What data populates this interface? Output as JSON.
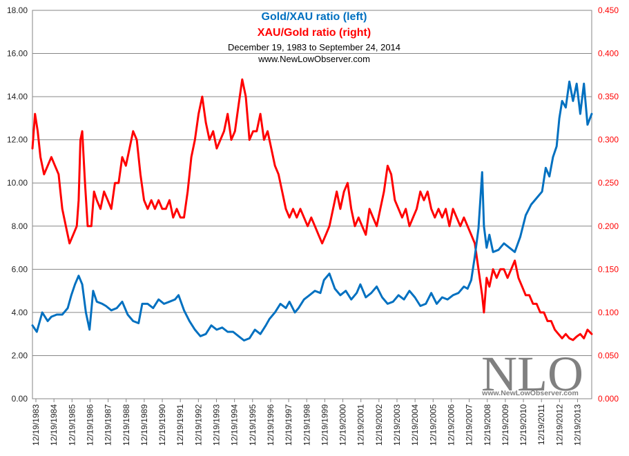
{
  "chart_data": {
    "type": "line",
    "title": "Gold/XAU ratio (left)",
    "subtitle": "XAU/Gold ratio (right)",
    "date_range": "December 19, 1983  to September 24, 2014",
    "website": "www.NewLowObserver.com",
    "watermark": {
      "text": "NLO",
      "url": "www.NewLowObserver.com"
    },
    "x_ticks": [
      "12/19/1983",
      "12/19/1984",
      "12/19/1985",
      "12/19/1986",
      "12/19/1987",
      "12/19/1988",
      "12/19/1989",
      "12/19/1990",
      "12/19/1991",
      "12/19/1992",
      "12/19/1993",
      "12/19/1994",
      "12/19/1995",
      "12/19/1996",
      "12/19/1997",
      "12/19/1998",
      "12/19/1999",
      "12/19/2000",
      "12/19/2001",
      "12/19/2002",
      "12/19/2003",
      "12/19/2004",
      "12/19/2005",
      "12/19/2006",
      "12/19/2007",
      "12/19/2008",
      "12/19/2009",
      "12/19/2010",
      "12/19/2011",
      "12/19/2012",
      "12/19/2013"
    ],
    "y_left": {
      "ticks": [
        "0.00",
        "2.00",
        "4.00",
        "6.00",
        "8.00",
        "10.00",
        "12.00",
        "14.00",
        "16.00",
        "18.00"
      ],
      "range": [
        0,
        18
      ]
    },
    "y_right": {
      "ticks": [
        "0.000",
        "0.050",
        "0.100",
        "0.150",
        "0.200",
        "0.250",
        "0.300",
        "0.350",
        "0.400",
        "0.450"
      ],
      "range": [
        0,
        0.45
      ]
    },
    "grid": true,
    "series": [
      {
        "axis": "left",
        "color": "#0070c0",
        "x": [
          1983.96,
          1984.2,
          1984.5,
          1984.8,
          1985.0,
          1985.3,
          1985.6,
          1985.9,
          1986.1,
          1986.3,
          1986.5,
          1986.7,
          1986.9,
          1987.1,
          1987.3,
          1987.5,
          1987.8,
          1988.0,
          1988.3,
          1988.6,
          1988.9,
          1989.2,
          1989.5,
          1989.8,
          1990.0,
          1990.3,
          1990.6,
          1990.9,
          1991.2,
          1991.5,
          1991.8,
          1992.0,
          1992.3,
          1992.6,
          1992.9,
          1993.2,
          1993.5,
          1993.8,
          1994.1,
          1994.4,
          1994.7,
          1995.0,
          1995.3,
          1995.6,
          1995.9,
          1996.2,
          1996.5,
          1996.8,
          1997.0,
          1997.3,
          1997.6,
          1997.9,
          1998.1,
          1998.4,
          1998.6,
          1998.9,
          1999.2,
          1999.5,
          1999.8,
          2000.0,
          2000.3,
          2000.6,
          2000.9,
          2001.2,
          2001.5,
          2001.8,
          2002.0,
          2002.3,
          2002.6,
          2002.9,
          2003.2,
          2003.5,
          2003.8,
          2004.1,
          2004.4,
          2004.7,
          2005.0,
          2005.3,
          2005.6,
          2005.9,
          2006.2,
          2006.5,
          2006.8,
          2007.1,
          2007.4,
          2007.7,
          2007.9,
          2008.1,
          2008.3,
          2008.5,
          2008.7,
          2008.8,
          2008.95,
          2009.1,
          2009.3,
          2009.6,
          2009.9,
          2010.2,
          2010.5,
          2010.8,
          2011.1,
          2011.4,
          2011.7,
          2012.0,
          2012.2,
          2012.4,
          2012.6,
          2012.8,
          2012.95,
          2013.1,
          2013.3,
          2013.5,
          2013.7,
          2013.9,
          2014.1,
          2014.3,
          2014.5,
          2014.73
        ],
        "values": [
          3.4,
          3.1,
          4.0,
          3.6,
          3.8,
          3.9,
          3.9,
          4.2,
          4.8,
          5.3,
          5.7,
          5.3,
          4.0,
          3.2,
          5.0,
          4.5,
          4.4,
          4.3,
          4.1,
          4.2,
          4.5,
          3.9,
          3.6,
          3.5,
          4.4,
          4.4,
          4.2,
          4.6,
          4.4,
          4.5,
          4.6,
          4.8,
          4.1,
          3.6,
          3.2,
          2.9,
          3.0,
          3.4,
          3.2,
          3.3,
          3.1,
          3.1,
          2.9,
          2.7,
          2.8,
          3.2,
          3.0,
          3.4,
          3.7,
          4.0,
          4.4,
          4.2,
          4.5,
          4.0,
          4.2,
          4.6,
          4.8,
          5.0,
          4.9,
          5.5,
          5.8,
          5.1,
          4.8,
          5.0,
          4.6,
          4.9,
          5.3,
          4.7,
          4.9,
          5.2,
          4.7,
          4.4,
          4.5,
          4.8,
          4.6,
          5.0,
          4.7,
          4.3,
          4.4,
          4.9,
          4.4,
          4.7,
          4.6,
          4.8,
          4.9,
          5.2,
          5.1,
          5.5,
          6.6,
          7.9,
          10.5,
          8.0,
          7.0,
          7.6,
          6.8,
          6.9,
          7.2,
          7.0,
          6.8,
          7.5,
          8.5,
          9.0,
          9.3,
          9.6,
          10.7,
          10.3,
          11.2,
          11.7,
          13.0,
          13.8,
          13.5,
          14.7,
          13.8,
          14.6,
          13.2,
          14.6,
          12.7,
          13.2
        ]
      },
      {
        "axis": "right",
        "color": "#ff0000",
        "x": [
          1983.96,
          1984.1,
          1984.25,
          1984.4,
          1984.6,
          1984.8,
          1985.0,
          1985.2,
          1985.4,
          1985.5,
          1985.6,
          1985.8,
          1986.0,
          1986.2,
          1986.4,
          1986.5,
          1986.6,
          1986.7,
          1986.85,
          1987.0,
          1987.2,
          1987.35,
          1987.5,
          1987.7,
          1987.9,
          1988.1,
          1988.3,
          1988.5,
          1988.7,
          1988.9,
          1989.1,
          1989.3,
          1989.5,
          1989.7,
          1989.9,
          1990.1,
          1990.3,
          1990.5,
          1990.7,
          1990.9,
          1991.1,
          1991.3,
          1991.5,
          1991.7,
          1991.9,
          1992.1,
          1992.3,
          1992.5,
          1992.7,
          1992.9,
          1993.1,
          1993.3,
          1993.5,
          1993.7,
          1993.9,
          1994.1,
          1994.3,
          1994.5,
          1994.7,
          1994.9,
          1995.1,
          1995.3,
          1995.5,
          1995.7,
          1995.9,
          1996.1,
          1996.3,
          1996.5,
          1996.7,
          1996.9,
          1997.1,
          1997.3,
          1997.5,
          1997.7,
          1997.9,
          1998.1,
          1998.3,
          1998.5,
          1998.7,
          1998.9,
          1999.1,
          1999.3,
          1999.5,
          1999.7,
          1999.9,
          2000.1,
          2000.3,
          2000.5,
          2000.7,
          2000.9,
          2001.1,
          2001.3,
          2001.5,
          2001.7,
          2001.9,
          2002.1,
          2002.3,
          2002.5,
          2002.7,
          2002.9,
          2003.1,
          2003.3,
          2003.5,
          2003.7,
          2003.9,
          2004.1,
          2004.3,
          2004.5,
          2004.7,
          2004.9,
          2005.1,
          2005.3,
          2005.5,
          2005.7,
          2005.9,
          2006.1,
          2006.3,
          2006.5,
          2006.7,
          2006.9,
          2007.1,
          2007.3,
          2007.5,
          2007.7,
          2007.9,
          2008.1,
          2008.3,
          2008.5,
          2008.7,
          2008.8,
          2008.95,
          2009.1,
          2009.3,
          2009.5,
          2009.7,
          2009.9,
          2010.1,
          2010.3,
          2010.5,
          2010.7,
          2010.9,
          2011.1,
          2011.3,
          2011.5,
          2011.7,
          2011.9,
          2012.1,
          2012.3,
          2012.5,
          2012.7,
          2012.9,
          2013.1,
          2013.3,
          2013.5,
          2013.7,
          2013.9,
          2014.1,
          2014.3,
          2014.5,
          2014.73
        ],
        "values": [
          0.29,
          0.33,
          0.31,
          0.28,
          0.26,
          0.27,
          0.28,
          0.27,
          0.26,
          0.24,
          0.22,
          0.2,
          0.18,
          0.19,
          0.2,
          0.23,
          0.3,
          0.31,
          0.25,
          0.2,
          0.2,
          0.24,
          0.23,
          0.22,
          0.24,
          0.23,
          0.22,
          0.25,
          0.25,
          0.28,
          0.27,
          0.29,
          0.31,
          0.3,
          0.26,
          0.23,
          0.22,
          0.23,
          0.22,
          0.23,
          0.22,
          0.22,
          0.23,
          0.21,
          0.22,
          0.21,
          0.21,
          0.24,
          0.28,
          0.3,
          0.33,
          0.35,
          0.32,
          0.3,
          0.31,
          0.29,
          0.3,
          0.31,
          0.33,
          0.3,
          0.31,
          0.34,
          0.37,
          0.35,
          0.3,
          0.31,
          0.31,
          0.33,
          0.3,
          0.31,
          0.29,
          0.27,
          0.26,
          0.24,
          0.22,
          0.21,
          0.22,
          0.21,
          0.22,
          0.21,
          0.2,
          0.21,
          0.2,
          0.19,
          0.18,
          0.19,
          0.2,
          0.22,
          0.24,
          0.22,
          0.24,
          0.25,
          0.22,
          0.2,
          0.21,
          0.2,
          0.19,
          0.22,
          0.21,
          0.2,
          0.22,
          0.24,
          0.27,
          0.26,
          0.23,
          0.22,
          0.21,
          0.22,
          0.2,
          0.21,
          0.22,
          0.24,
          0.23,
          0.24,
          0.22,
          0.21,
          0.22,
          0.21,
          0.22,
          0.2,
          0.22,
          0.21,
          0.2,
          0.21,
          0.2,
          0.19,
          0.18,
          0.15,
          0.12,
          0.1,
          0.14,
          0.13,
          0.15,
          0.14,
          0.15,
          0.15,
          0.14,
          0.15,
          0.16,
          0.14,
          0.13,
          0.12,
          0.12,
          0.11,
          0.11,
          0.1,
          0.1,
          0.09,
          0.09,
          0.08,
          0.075,
          0.07,
          0.075,
          0.07,
          0.068,
          0.072,
          0.075,
          0.07,
          0.08,
          0.075
        ]
      }
    ]
  }
}
